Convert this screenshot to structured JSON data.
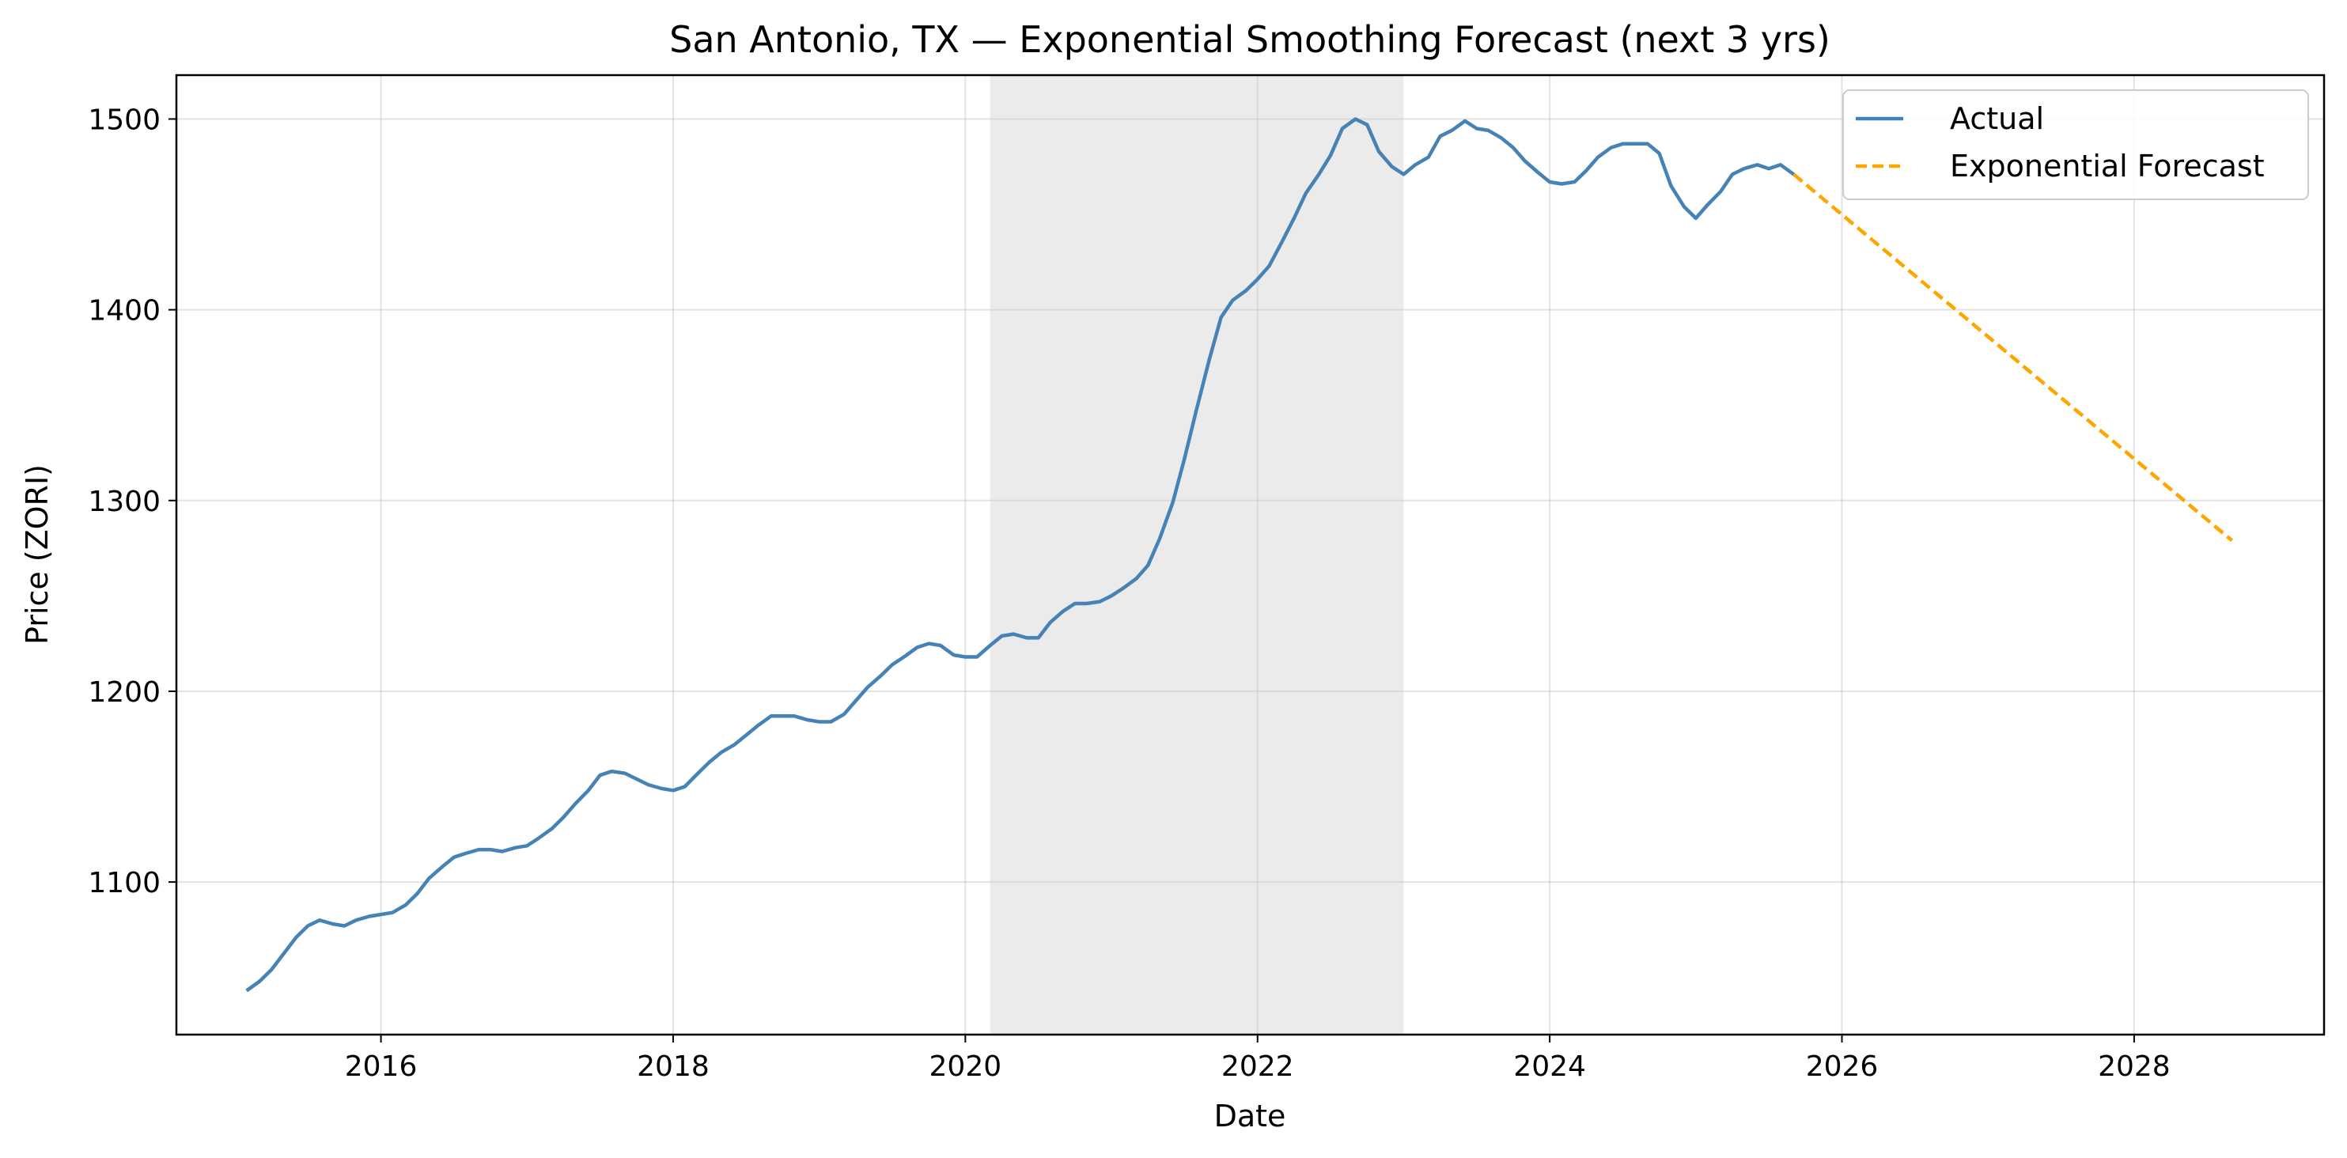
{
  "chart_data": {
    "type": "line",
    "title": "San Antonio, TX — Exponential Smoothing Forecast (next 3 yrs)",
    "xlabel": "Date",
    "ylabel": "Price (ZORI)",
    "xlim": [
      2014.6,
      2029.3
    ],
    "ylim": [
      1020,
      1523
    ],
    "xticks": [
      2016,
      2018,
      2020,
      2022,
      2024,
      2026,
      2028
    ],
    "yticks": [
      1100,
      1200,
      1300,
      1400,
      1500
    ],
    "grid": true,
    "legend_position": "top-right",
    "shaded_region": {
      "x_start": 2020.17,
      "x_end": 2023.0,
      "color": "#cccccc"
    },
    "colors": {
      "actual": "#4682b4",
      "forecast": "#ffa500"
    },
    "series": [
      {
        "name": "Actual",
        "style": "solid",
        "x": [
          2015.08,
          2015.17,
          2015.25,
          2015.33,
          2015.42,
          2015.5,
          2015.58,
          2015.67,
          2015.75,
          2015.83,
          2015.92,
          2016.0,
          2016.08,
          2016.17,
          2016.25,
          2016.33,
          2016.42,
          2016.5,
          2016.58,
          2016.67,
          2016.75,
          2016.83,
          2016.92,
          2017.0,
          2017.08,
          2017.17,
          2017.25,
          2017.33,
          2017.42,
          2017.5,
          2017.58,
          2017.67,
          2017.75,
          2017.83,
          2017.92,
          2018.0,
          2018.08,
          2018.17,
          2018.25,
          2018.33,
          2018.42,
          2018.5,
          2018.58,
          2018.67,
          2018.75,
          2018.83,
          2018.92,
          2019.0,
          2019.08,
          2019.17,
          2019.25,
          2019.33,
          2019.42,
          2019.5,
          2019.58,
          2019.67,
          2019.75,
          2019.83,
          2019.92,
          2020.0,
          2020.08,
          2020.17,
          2020.25,
          2020.33,
          2020.42,
          2020.5,
          2020.58,
          2020.67,
          2020.75,
          2020.83,
          2020.92,
          2021.0,
          2021.08,
          2021.17,
          2021.25,
          2021.33,
          2021.42,
          2021.5,
          2021.58,
          2021.67,
          2021.75,
          2021.83,
          2021.92,
          2022.0,
          2022.08,
          2022.17,
          2022.25,
          2022.33,
          2022.42,
          2022.5,
          2022.58,
          2022.67,
          2022.75,
          2022.83,
          2022.92,
          2023.0,
          2023.08,
          2023.17,
          2023.25,
          2023.33,
          2023.42,
          2023.5,
          2023.58,
          2023.67,
          2023.75,
          2023.83,
          2023.92,
          2024.0,
          2024.08,
          2024.17,
          2024.25,
          2024.33,
          2024.42,
          2024.5,
          2024.58,
          2024.67,
          2024.75,
          2024.83,
          2024.92,
          2025.0,
          2025.08,
          2025.17,
          2025.25,
          2025.33,
          2025.42,
          2025.5,
          2025.58,
          2025.67
        ],
        "y": [
          1043,
          1048,
          1054,
          1062,
          1071,
          1077,
          1080,
          1078,
          1077,
          1080,
          1082,
          1083,
          1084,
          1088,
          1094,
          1102,
          1108,
          1113,
          1115,
          1117,
          1117,
          1116,
          1118,
          1119,
          1123,
          1128,
          1134,
          1141,
          1148,
          1156,
          1158,
          1157,
          1154,
          1151,
          1149,
          1148,
          1150,
          1157,
          1163,
          1168,
          1172,
          1177,
          1182,
          1187,
          1187,
          1187,
          1185,
          1184,
          1184,
          1188,
          1195,
          1202,
          1208,
          1214,
          1218,
          1223,
          1225,
          1224,
          1219,
          1218,
          1218,
          1224,
          1229,
          1230,
          1228,
          1228,
          1236,
          1242,
          1246,
          1246,
          1247,
          1250,
          1254,
          1259,
          1266,
          1280,
          1299,
          1322,
          1347,
          1374,
          1396,
          1405,
          1410,
          1416,
          1423,
          1436,
          1448,
          1461,
          1471,
          1481,
          1495,
          1500,
          1497,
          1483,
          1475,
          1471,
          1476,
          1480,
          1491,
          1494,
          1499,
          1495,
          1494,
          1490,
          1485,
          1478,
          1472,
          1467,
          1466,
          1467,
          1473,
          1480,
          1485,
          1487,
          1487,
          1487,
          1482,
          1465,
          1454,
          1448,
          1455,
          1462,
          1471,
          1474,
          1476,
          1474,
          1476,
          1471
        ]
      },
      {
        "name": "Exponential Forecast",
        "style": "dashed",
        "x": [
          2025.67,
          2028.67
        ],
        "y": [
          1471,
          1279
        ]
      }
    ]
  }
}
